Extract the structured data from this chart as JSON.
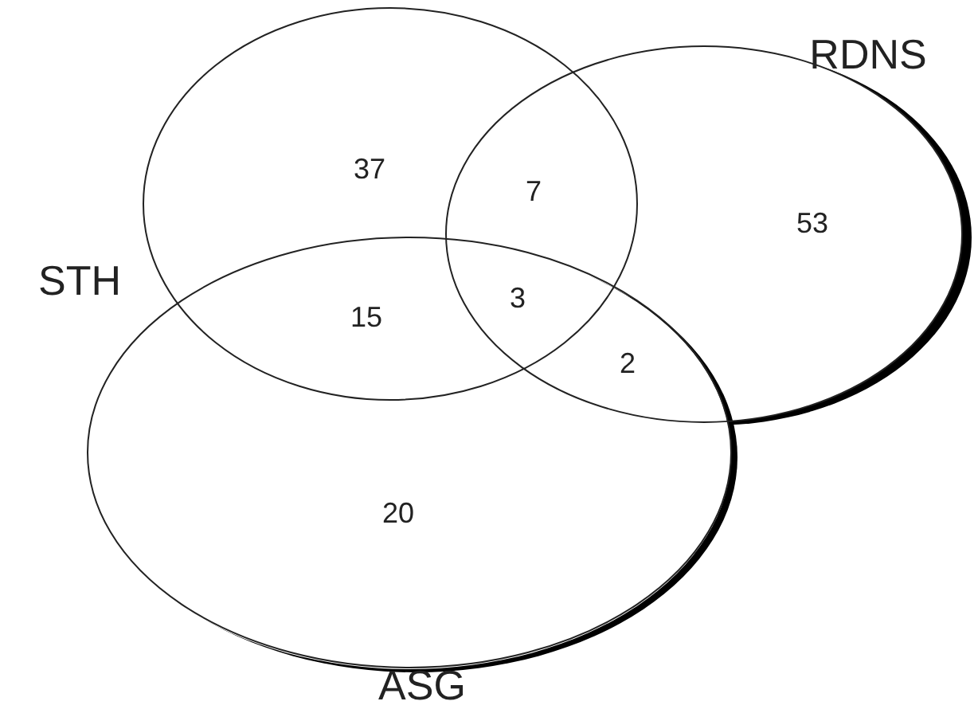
{
  "chart_data": {
    "type": "other",
    "annotations": [
      "STH",
      "RDNS",
      "ASG"
    ],
    "categories": [
      null,
      null,
      null,
      null,
      null,
      null,
      null
    ],
    "values": [
      37,
      7,
      53,
      15,
      3,
      2,
      20
    ],
    "data_labels": true
  }
}
